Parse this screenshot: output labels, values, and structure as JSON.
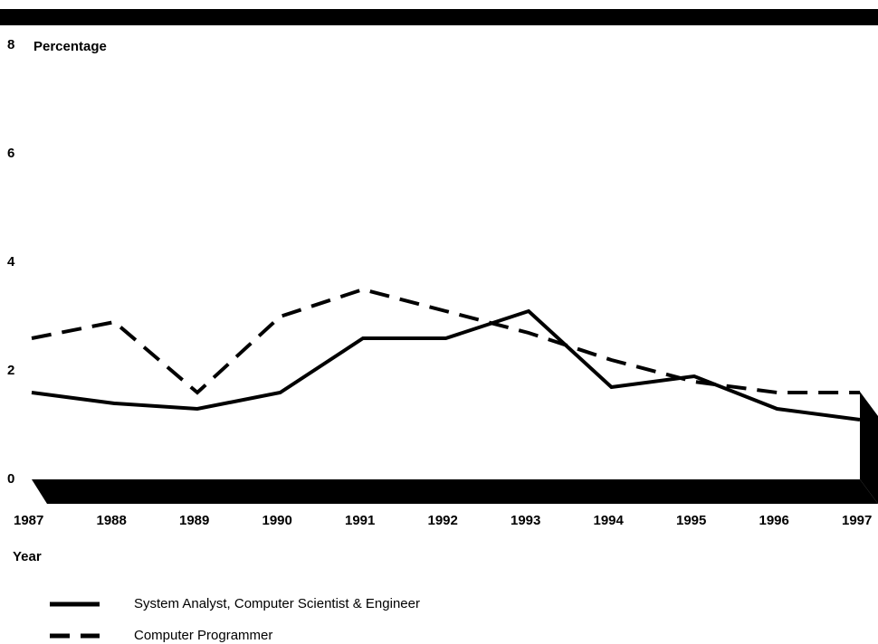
{
  "chart_data": {
    "type": "line",
    "ylabel": "Percentage",
    "xlabel": "Year",
    "categories": [
      "1987",
      "1988",
      "1989",
      "1990",
      "1991",
      "1992",
      "1993",
      "1994",
      "1995",
      "1996",
      "1997"
    ],
    "series": [
      {
        "name": "System Analyst, Computer Scientist & Engineer",
        "color": "#000000",
        "style": "solid",
        "values": [
          1.6,
          1.4,
          1.3,
          1.6,
          2.6,
          2.6,
          3.1,
          1.7,
          1.9,
          1.3,
          1.1
        ]
      },
      {
        "name": "Computer Programmer",
        "color": "#000000",
        "style": "dashed",
        "values": [
          2.6,
          2.9,
          1.6,
          3.0,
          3.5,
          3.1,
          2.7,
          2.2,
          1.8,
          1.6,
          1.6
        ]
      }
    ],
    "ylim": [
      0,
      8
    ],
    "yticks": [
      0,
      2,
      4,
      6,
      8
    ]
  }
}
